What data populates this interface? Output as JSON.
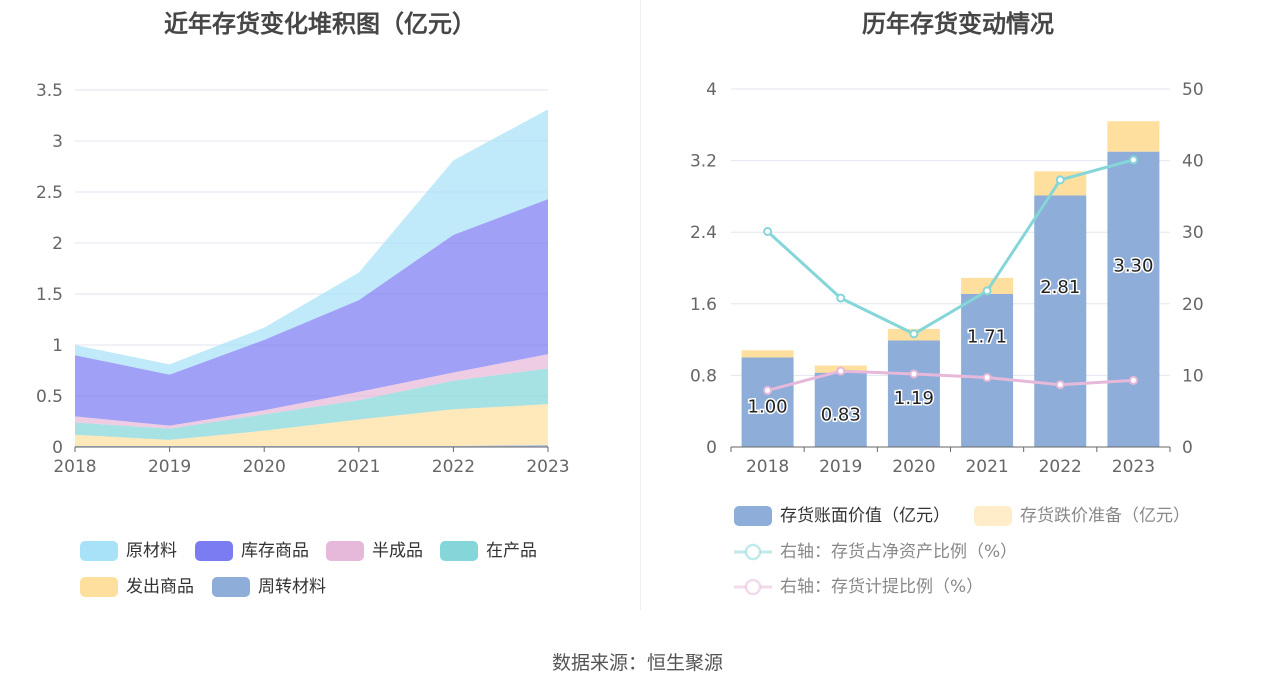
{
  "chart_data": [
    {
      "type": "area",
      "title": "近年存货变化堆积图（亿元）",
      "x": [
        "2018",
        "2019",
        "2020",
        "2021",
        "2022",
        "2023"
      ],
      "ylim": [
        0,
        3.5
      ],
      "yticks": [
        "0",
        "0.5",
        "1",
        "1.5",
        "2",
        "2.5",
        "3",
        "3.5"
      ],
      "stacked": true,
      "legend_position": "bottom",
      "series": [
        {
          "name": "周转材料",
          "values": [
            0.01,
            0.01,
            0.01,
            0.01,
            0.01,
            0.02
          ],
          "color": "#8eadd9"
        },
        {
          "name": "发出商品",
          "values": [
            0.11,
            0.06,
            0.15,
            0.26,
            0.36,
            0.4
          ],
          "color": "#ffdf9e"
        },
        {
          "name": "在产品",
          "values": [
            0.12,
            0.11,
            0.16,
            0.19,
            0.28,
            0.35
          ],
          "color": "#84d6d9"
        },
        {
          "name": "半成品",
          "values": [
            0.06,
            0.03,
            0.04,
            0.08,
            0.08,
            0.14
          ],
          "color": "#e6b8da"
        },
        {
          "name": "库存商品",
          "values": [
            0.6,
            0.5,
            0.69,
            0.9,
            1.35,
            1.52
          ],
          "color": "#7b7bf2"
        },
        {
          "name": "原材料",
          "values": [
            0.1,
            0.1,
            0.12,
            0.27,
            0.73,
            0.88
          ],
          "color": "#a8e2f8"
        }
      ],
      "legend_order": [
        "原材料",
        "库存商品",
        "半成品",
        "在产品",
        "发出商品",
        "周转材料"
      ]
    },
    {
      "type": "bar",
      "title": "历年存货变动情况",
      "categories": [
        "2018",
        "2019",
        "2020",
        "2021",
        "2022",
        "2023"
      ],
      "ylim": [
        0,
        4
      ],
      "yticks": [
        "0",
        "0.8",
        "1.6",
        "2.4",
        "3.2",
        "4"
      ],
      "y2lim": [
        0,
        50
      ],
      "y2ticks": [
        "0",
        "10",
        "20",
        "30",
        "40",
        "50"
      ],
      "stacked": true,
      "legend_position": "bottom",
      "series": [
        {
          "name": "存货账面价值（亿元）",
          "type": "bar",
          "axis": "left",
          "values": [
            1.0,
            0.83,
            1.19,
            1.71,
            2.81,
            3.3
          ],
          "labels": [
            "1.00",
            "0.83",
            "1.19",
            "1.71",
            "2.81",
            "3.30"
          ],
          "color": "#8eadd9"
        },
        {
          "name": "存货跌价准备（亿元）",
          "type": "bar",
          "axis": "left",
          "values": [
            0.08,
            0.08,
            0.13,
            0.18,
            0.27,
            0.34
          ],
          "color": "#ffdf9e"
        },
        {
          "name": "右轴：存货占净资产比例（%）",
          "type": "line",
          "axis": "right",
          "values": [
            30.1,
            20.8,
            15.8,
            21.8,
            37.3,
            40.1
          ],
          "color": "#84d6d9"
        },
        {
          "name": "右轴：存货计提比例（%）",
          "type": "line",
          "axis": "right",
          "values": [
            7.9,
            10.6,
            10.2,
            9.7,
            8.7,
            9.3
          ],
          "color": "#e6b8da"
        }
      ]
    }
  ],
  "footer": {
    "source": "数据来源：恒生聚源"
  }
}
